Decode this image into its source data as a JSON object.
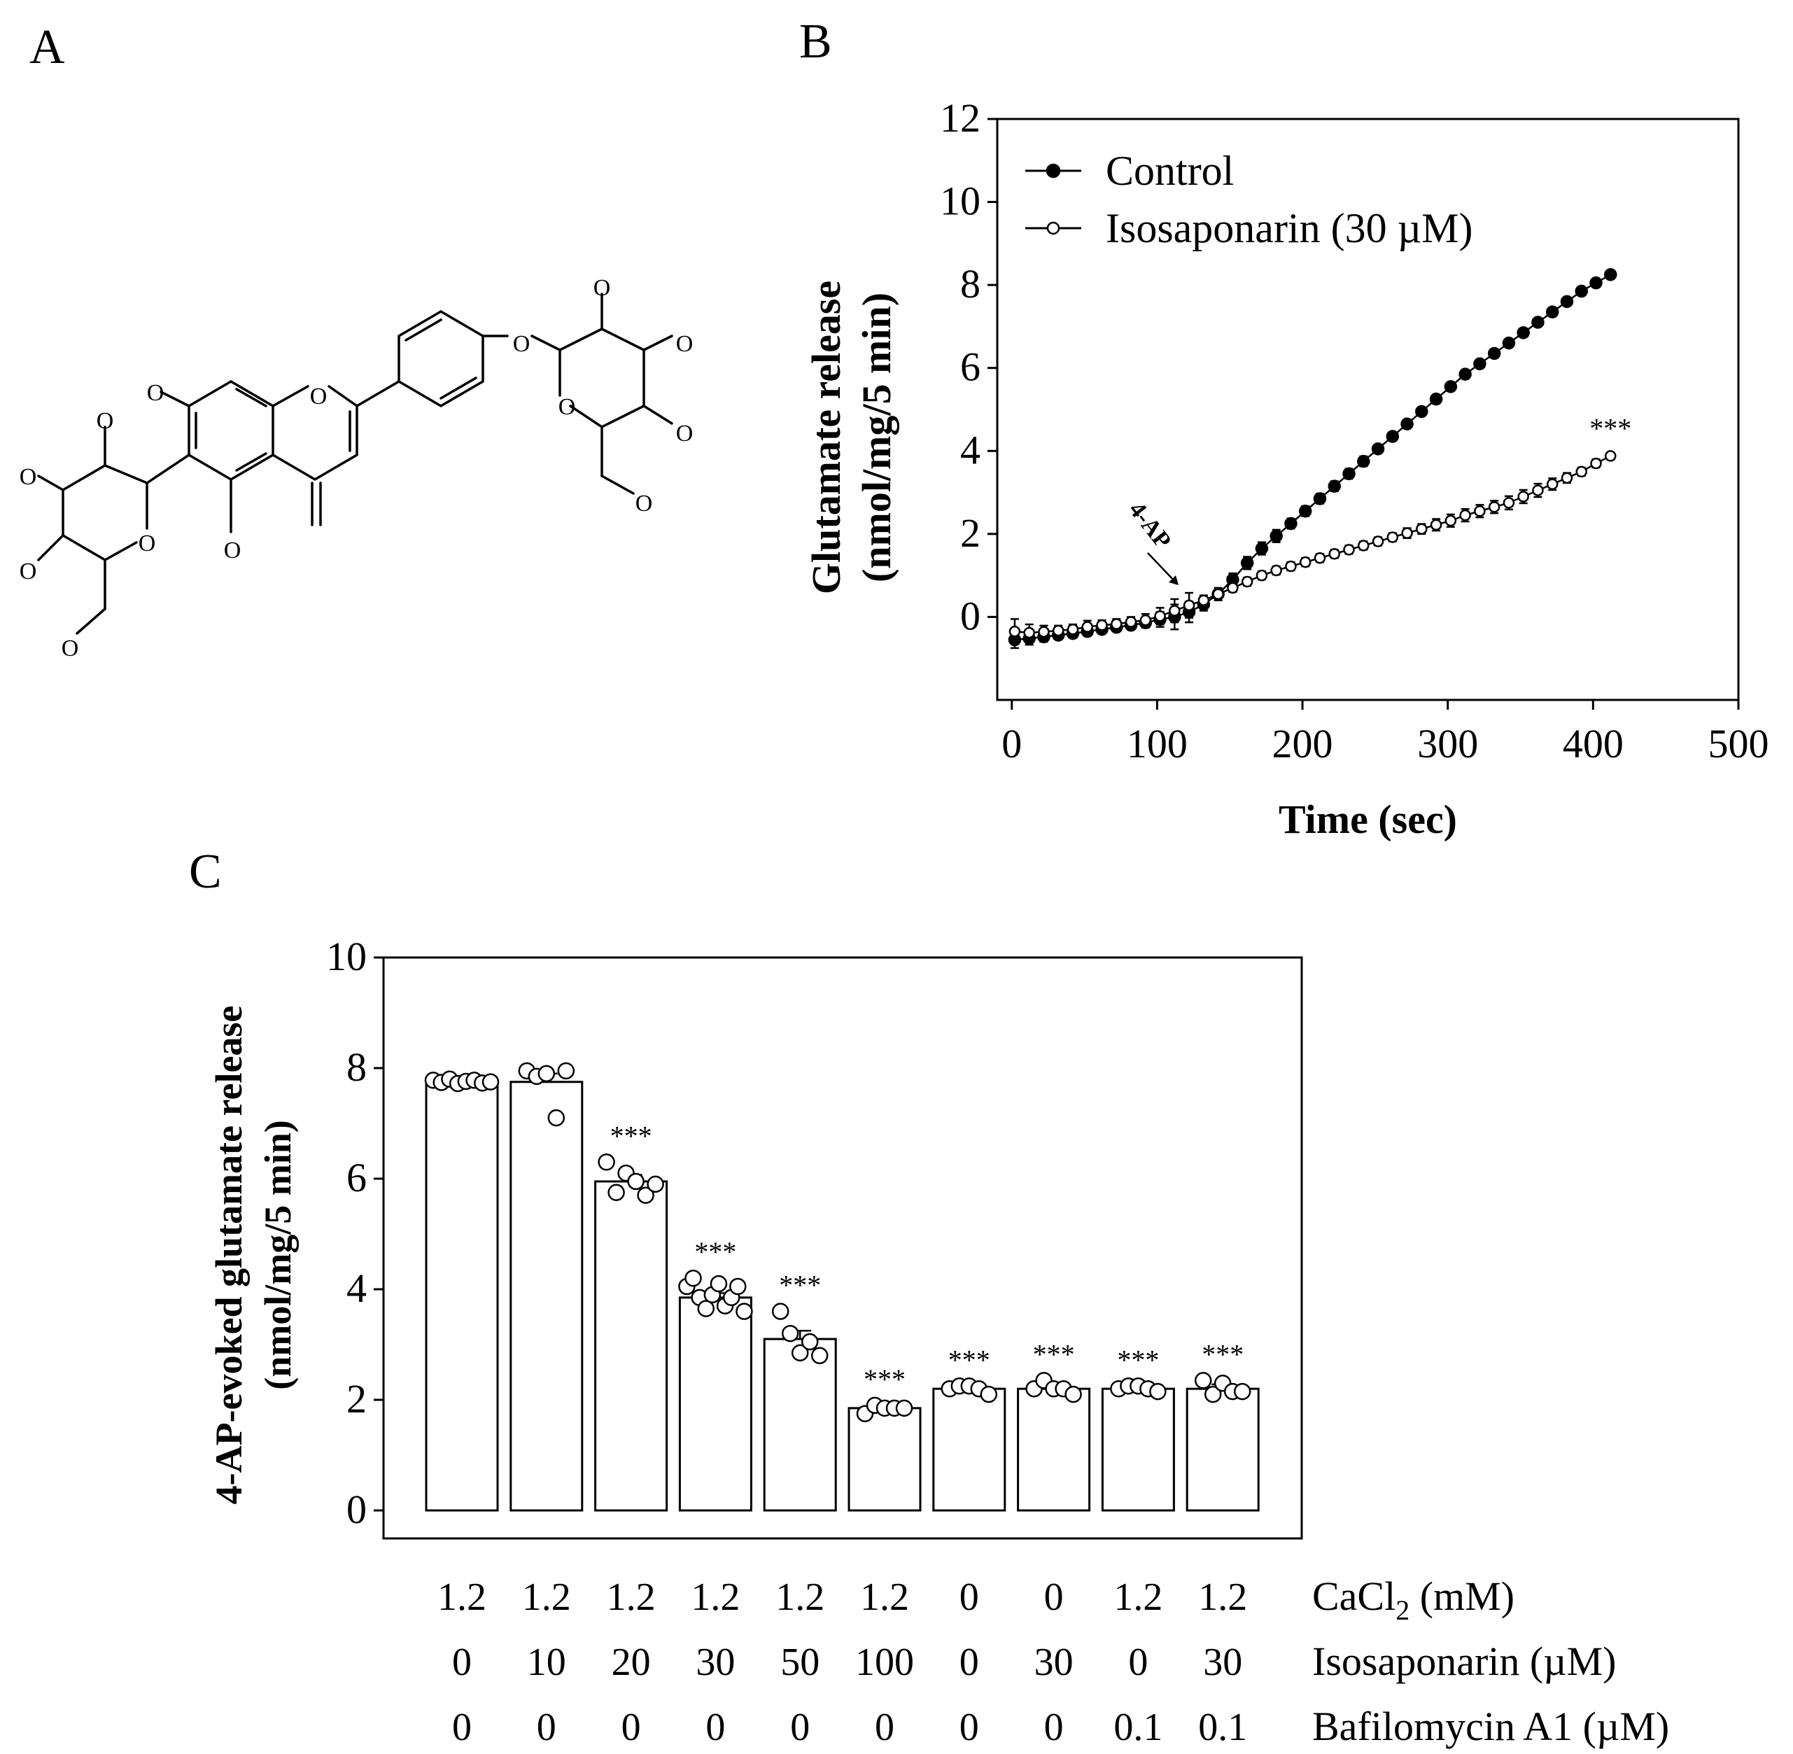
{
  "panel_labels": {
    "a": "A",
    "b": "B",
    "c": "C"
  },
  "structure_atoms": {
    "o": "O"
  },
  "chart_data": [
    {
      "id": "B",
      "type": "line",
      "title": "",
      "xlabel": "Time (sec)",
      "ylabel_line1": "Glutamate release",
      "ylabel_line2": "(nmol/mg/5 min)",
      "xlim": [
        -10,
        500
      ],
      "ylim": [
        -2,
        12
      ],
      "xticks": [
        0,
        100,
        200,
        300,
        400,
        500
      ],
      "yticks": [
        0,
        2,
        4,
        6,
        8,
        10,
        12
      ],
      "legend_position": "top-left",
      "annotation_arrow": "4-AP",
      "significance_label": "***",
      "series": [
        {
          "name": "Control",
          "marker": "filled",
          "x": [
            2,
            12,
            22,
            32,
            42,
            52,
            62,
            72,
            82,
            92,
            102,
            112,
            122,
            132,
            142,
            152,
            162,
            172,
            182,
            192,
            202,
            212,
            222,
            232,
            242,
            252,
            262,
            272,
            282,
            292,
            302,
            312,
            322,
            332,
            342,
            352,
            362,
            372,
            382,
            392,
            402,
            412
          ],
          "y": [
            -0.55,
            -0.52,
            -0.48,
            -0.44,
            -0.4,
            -0.35,
            -0.3,
            -0.25,
            -0.2,
            -0.14,
            -0.06,
            0.0,
            0.12,
            0.3,
            0.55,
            0.9,
            1.3,
            1.65,
            1.95,
            2.25,
            2.55,
            2.85,
            3.15,
            3.45,
            3.75,
            4.05,
            4.35,
            4.65,
            4.95,
            5.25,
            5.55,
            5.85,
            6.1,
            6.35,
            6.6,
            6.85,
            7.1,
            7.35,
            7.6,
            7.85,
            8.05,
            8.25
          ],
          "err": [
            0.2,
            0.15,
            0.12,
            0.1,
            0.1,
            0.1,
            0.1,
            0.1,
            0.1,
            0.12,
            0.18,
            0.3,
            0.25,
            0.15,
            0.15,
            0.15,
            0.15,
            0.15,
            0.15,
            0.12,
            0.12,
            0.12,
            0.12,
            0.12,
            0.12,
            0.1,
            0.1,
            0.1,
            0.1,
            0.1,
            0.1,
            0.1,
            0.1,
            0.1,
            0.1,
            0.08,
            0.08,
            0.08,
            0.08,
            0.08,
            0.08,
            0.08
          ]
        },
        {
          "name": "Isosaponarin (30 µM)",
          "marker": "open",
          "x": [
            2,
            12,
            22,
            32,
            42,
            52,
            62,
            72,
            82,
            92,
            102,
            112,
            122,
            132,
            142,
            152,
            162,
            172,
            182,
            192,
            202,
            212,
            222,
            232,
            242,
            252,
            262,
            272,
            282,
            292,
            302,
            312,
            322,
            332,
            342,
            352,
            362,
            372,
            382,
            392,
            402,
            412
          ],
          "y": [
            -0.35,
            -0.38,
            -0.36,
            -0.33,
            -0.3,
            -0.24,
            -0.2,
            -0.17,
            -0.12,
            -0.08,
            0.02,
            0.15,
            0.28,
            0.4,
            0.55,
            0.7,
            0.85,
            1.0,
            1.12,
            1.22,
            1.32,
            1.42,
            1.52,
            1.62,
            1.72,
            1.82,
            1.92,
            2.02,
            2.12,
            2.22,
            2.32,
            2.45,
            2.55,
            2.65,
            2.75,
            2.9,
            3.05,
            3.2,
            3.35,
            3.5,
            3.7,
            3.88
          ],
          "err": [
            0.3,
            0.2,
            0.15,
            0.12,
            0.12,
            0.15,
            0.12,
            0.12,
            0.12,
            0.15,
            0.2,
            0.28,
            0.3,
            0.12,
            0.1,
            0.1,
            0.1,
            0.1,
            0.1,
            0.1,
            0.1,
            0.1,
            0.1,
            0.1,
            0.1,
            0.1,
            0.1,
            0.12,
            0.12,
            0.14,
            0.15,
            0.15,
            0.15,
            0.15,
            0.16,
            0.16,
            0.16,
            0.14,
            0.12,
            0.1,
            0.1,
            0.08
          ]
        }
      ]
    },
    {
      "id": "C",
      "type": "bar",
      "title": "",
      "ylabel_line1": "4-AP-evoked glutamate release",
      "ylabel_line2": "(nmol/mg/5 min)",
      "ylim": [
        0,
        10
      ],
      "yticks": [
        0,
        2,
        4,
        6,
        8,
        10
      ],
      "values": [
        7.75,
        7.75,
        5.95,
        3.85,
        3.1,
        1.85,
        2.2,
        2.2,
        2.2,
        2.2
      ],
      "sem": [
        0.03,
        0.15,
        0.12,
        0.08,
        0.15,
        0.03,
        0.03,
        0.05,
        0.03,
        0.08
      ],
      "significance": [
        "",
        "",
        "***",
        "***",
        "***",
        "***",
        "***",
        "***",
        "***",
        "***"
      ],
      "points": [
        [
          7.78,
          7.74,
          7.8,
          7.72,
          7.76,
          7.78,
          7.73,
          7.75
        ],
        [
          7.95,
          7.85,
          7.9,
          7.1,
          7.95
        ],
        [
          6.3,
          5.75,
          6.1,
          5.95,
          5.7,
          5.9
        ],
        [
          4.05,
          4.2,
          3.85,
          3.65,
          3.9,
          4.1,
          3.7,
          3.85,
          4.05,
          3.6
        ],
        [
          3.6,
          3.2,
          2.85,
          3.05,
          2.8
        ],
        [
          1.75,
          1.9,
          1.85,
          1.85,
          1.85
        ],
        [
          2.2,
          2.25,
          2.25,
          2.2,
          2.1
        ],
        [
          2.2,
          2.35,
          2.2,
          2.2,
          2.1
        ],
        [
          2.2,
          2.25,
          2.25,
          2.2,
          2.15
        ],
        [
          2.35,
          2.1,
          2.3,
          2.15,
          2.15
        ]
      ],
      "table_rows": [
        {
          "label": "CaCl",
          "label_sub": "2",
          "label_suffix": " (mM)",
          "values": [
            "1.2",
            "1.2",
            "1.2",
            "1.2",
            "1.2",
            "1.2",
            "0",
            "0",
            "1.2",
            "1.2"
          ]
        },
        {
          "label": "Isosaponarin  (µM)",
          "label_sub": "",
          "label_suffix": "",
          "values": [
            "0",
            "10",
            "20",
            "30",
            "50",
            "100",
            "0",
            "30",
            "0",
            "30"
          ]
        },
        {
          "label": "Bafilomycin A1 (µM)",
          "label_sub": "",
          "label_suffix": "",
          "values": [
            "0",
            "0",
            "0",
            "0",
            "0",
            "0",
            "0",
            "0",
            "0.1",
            "0.1"
          ]
        }
      ]
    }
  ]
}
